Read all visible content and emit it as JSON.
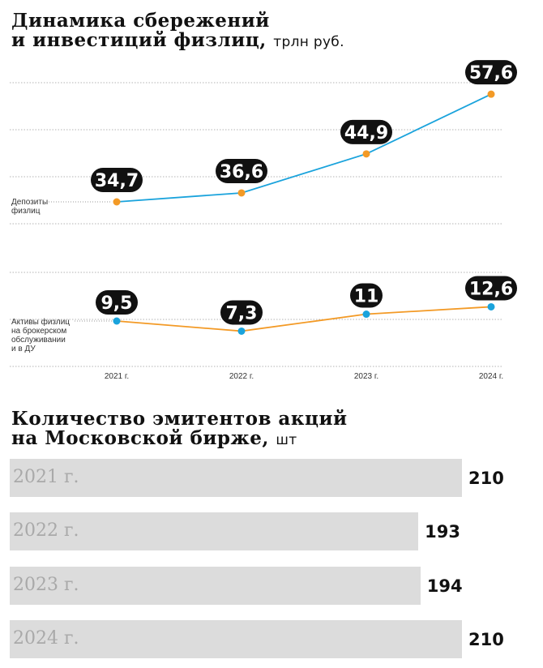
{
  "chart_data": [
    {
      "type": "line",
      "title": "Динамика сбережений",
      "title_line2": "и инвестиций физлиц,",
      "unit": "трлн руб.",
      "categories": [
        "2021 г.",
        "2022 г.",
        "2023 г.",
        "2024 г."
      ],
      "series": [
        {
          "name": "Депозиты физлиц",
          "name_lines": [
            "Депозиты",
            "физлиц"
          ],
          "values": [
            34.7,
            36.6,
            44.9,
            57.6
          ],
          "labels": [
            "34,7",
            "36,6",
            "44,9",
            "57,6"
          ],
          "line_color": "#1aa3dc",
          "marker_color": "#f39a26"
        },
        {
          "name": "Активы физлиц на брокерском обслуживании и в ДУ",
          "name_lines": [
            "Активы физлиц",
            "на брокерском",
            "обслуживании",
            "и в ДУ"
          ],
          "values": [
            9.5,
            7.3,
            11,
            12.6
          ],
          "labels": [
            "9,5",
            "7,3",
            "11",
            "12,6"
          ],
          "line_color": "#f39a26",
          "marker_color": "#1aa3dc"
        }
      ],
      "grid": true
    },
    {
      "type": "bar",
      "orientation": "horizontal",
      "title": "Количество эмитентов акций",
      "title_line2": "на Московской бирже,",
      "unit": "шт",
      "categories": [
        "2021 г.",
        "2022 г.",
        "2023 г.",
        "2024 г."
      ],
      "values": [
        210,
        193,
        194,
        210
      ],
      "bar_color": "#dcdcdc"
    }
  ]
}
